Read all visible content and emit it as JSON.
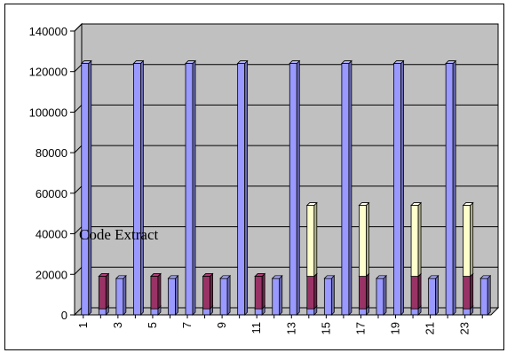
{
  "chart_data": {
    "type": "bar",
    "stacked": true,
    "three_d": true,
    "categories": [
      "1",
      "2",
      "3",
      "4",
      "5",
      "6",
      "7",
      "8",
      "9",
      "10",
      "11",
      "12",
      "13",
      "14",
      "15",
      "16",
      "17",
      "18",
      "19",
      "20",
      "21",
      "22",
      "23",
      "24"
    ],
    "x_tick_labels_shown": [
      "1",
      "3",
      "5",
      "7",
      "9",
      "11",
      "13",
      "15",
      "17",
      "19",
      "21",
      "23"
    ],
    "series": [
      {
        "values": [
          124000,
          3000,
          18000,
          124000,
          3000,
          18000,
          124000,
          3000,
          18000,
          124000,
          3000,
          18000,
          124000,
          3000,
          18000,
          124000,
          3000,
          18000,
          124000,
          3000,
          18000,
          124000,
          3000,
          18000
        ]
      },
      {
        "values": [
          0,
          16000,
          0,
          0,
          16000,
          0,
          0,
          16000,
          0,
          0,
          16000,
          0,
          0,
          16000,
          0,
          0,
          16000,
          0,
          0,
          16000,
          0,
          0,
          16000,
          0
        ]
      },
      {
        "values": [
          0,
          0,
          0,
          0,
          0,
          0,
          0,
          0,
          0,
          0,
          0,
          0,
          0,
          35000,
          0,
          0,
          35000,
          0,
          0,
          35000,
          0,
          0,
          35000,
          0
        ]
      }
    ],
    "ylim": [
      0,
      140000
    ],
    "y_ticks": [
      "0",
      "20000",
      "40000",
      "60000",
      "80000",
      "100000",
      "120000",
      "140000"
    ],
    "grid": true,
    "colors": {
      "series1": "#9999ff",
      "series2": "#993366",
      "series3": "#ffffcc",
      "plot_back": "#c0c0c0",
      "floor": "#c0c0c0"
    },
    "annotation": "Code Extract",
    "title": "",
    "xlabel": "",
    "ylabel": ""
  }
}
